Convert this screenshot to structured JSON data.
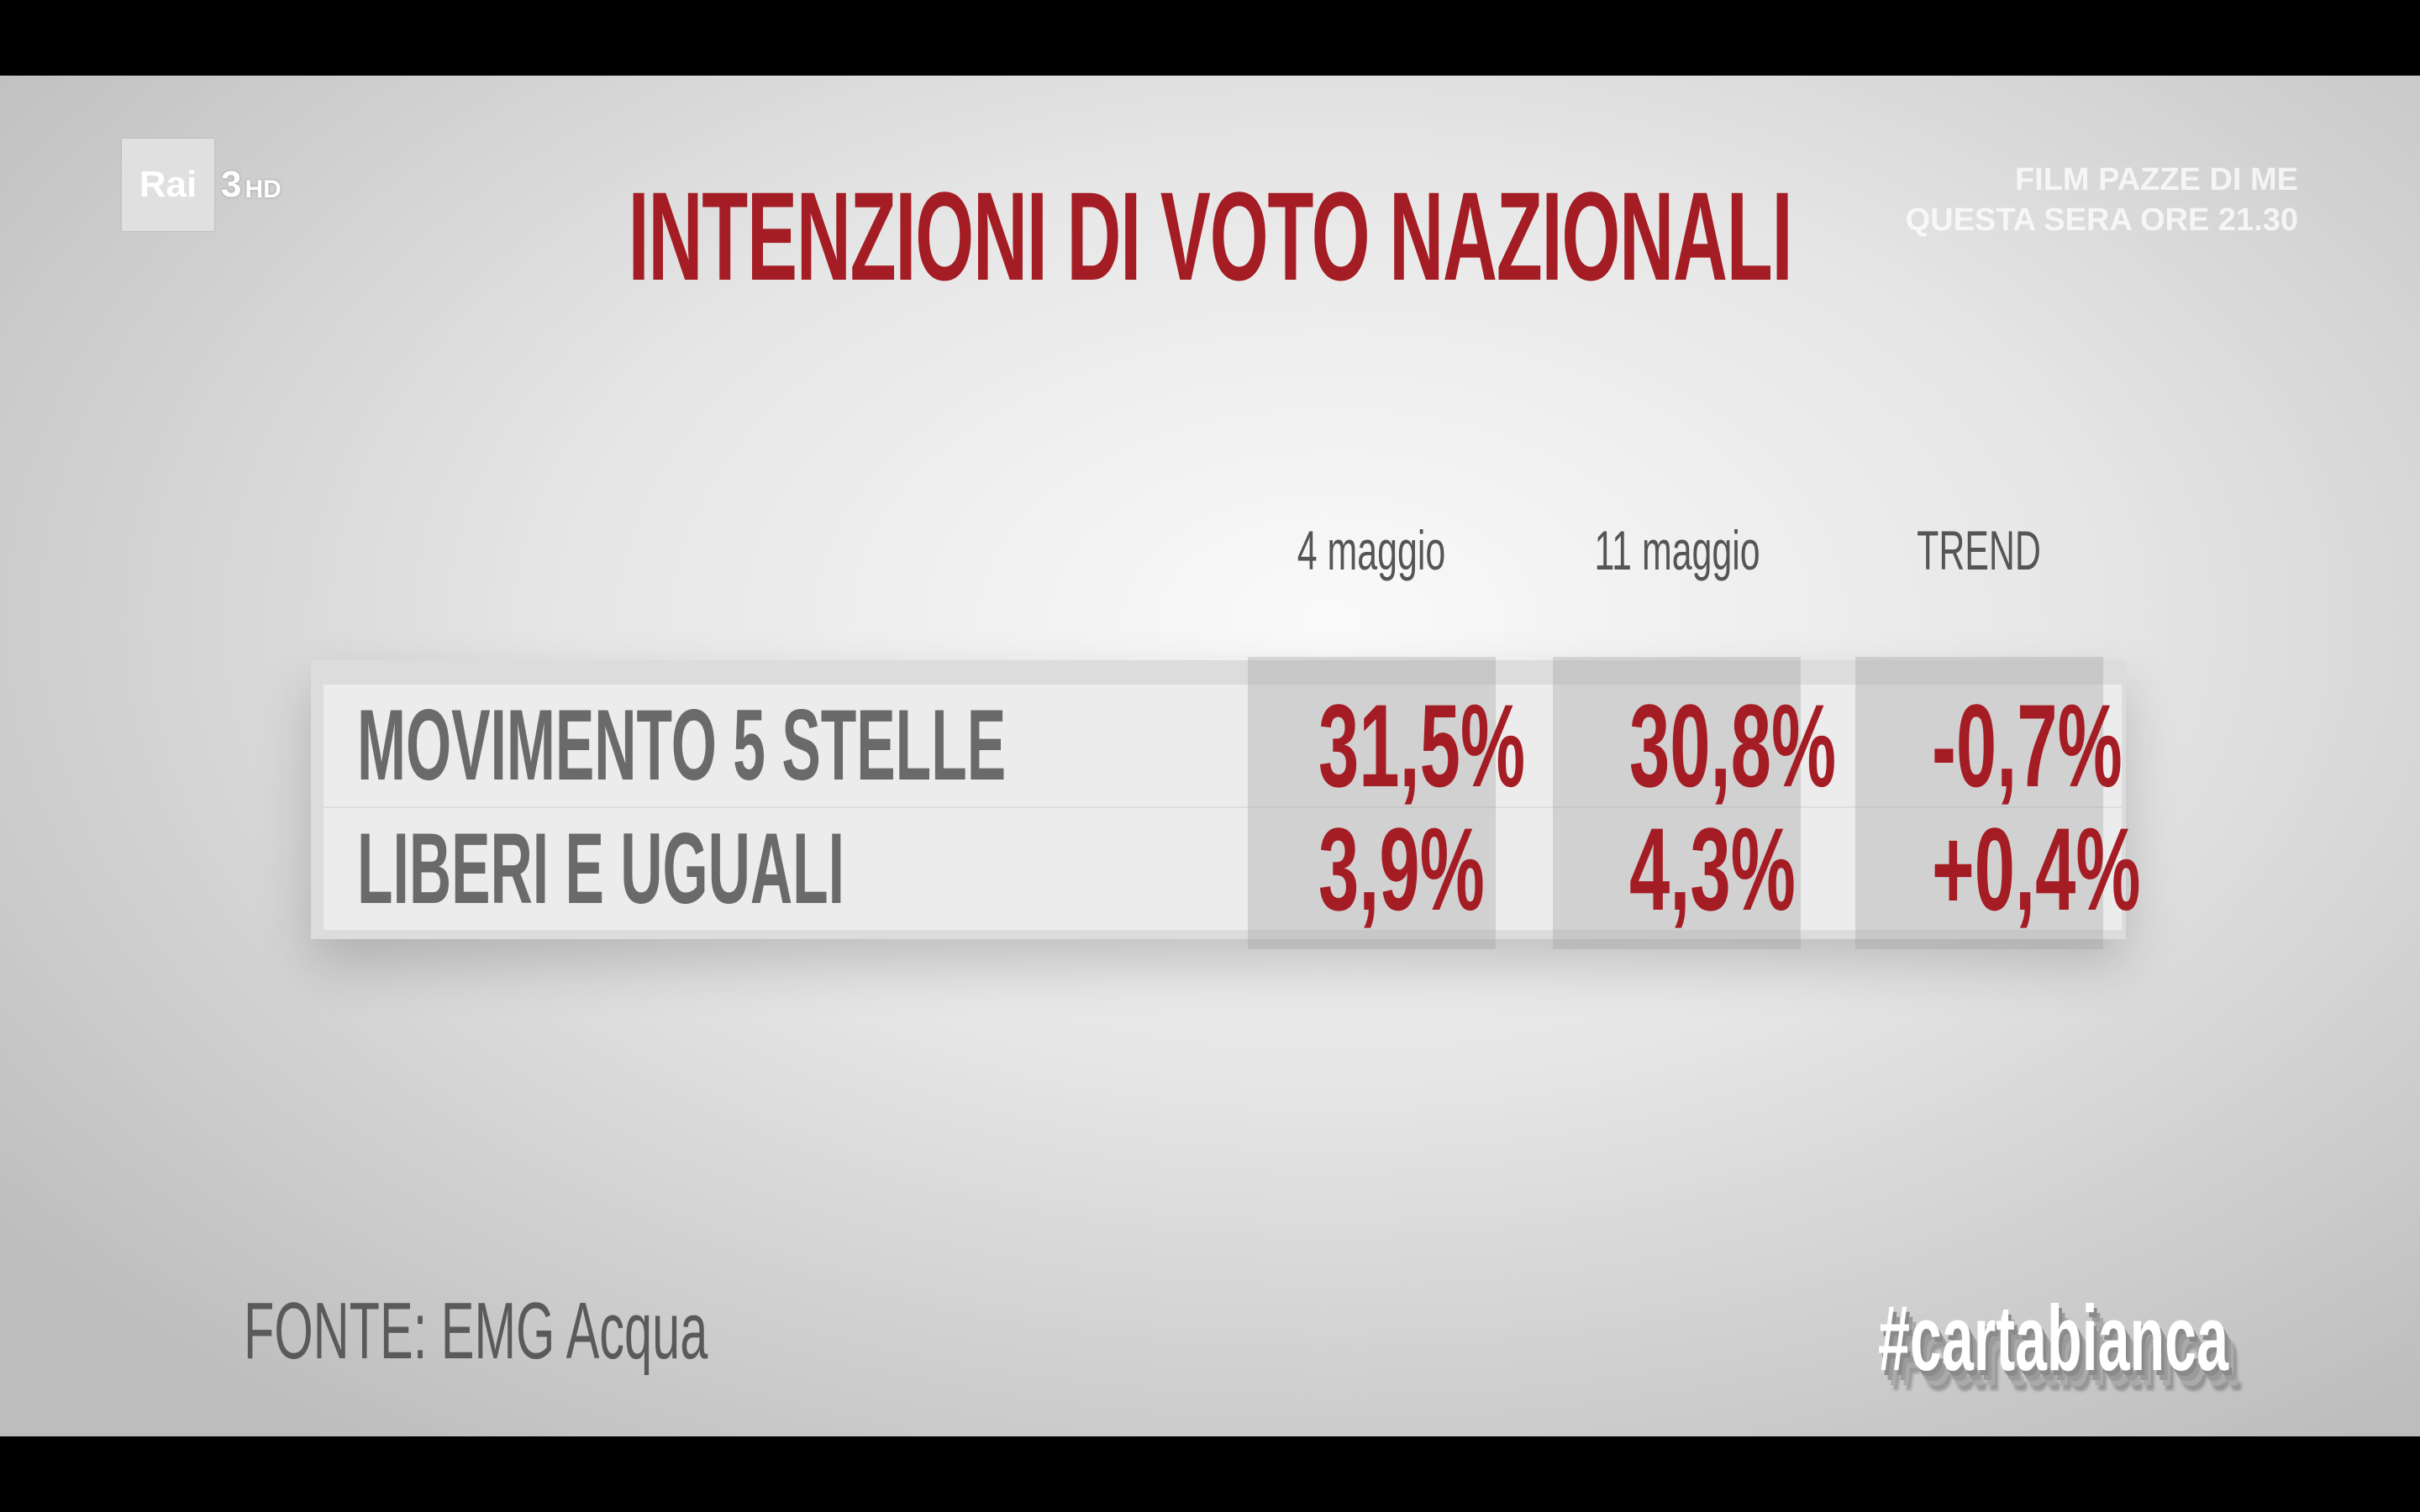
{
  "logo": {
    "brand": "Rai",
    "channel": "3",
    "hd": "HD"
  },
  "promo": {
    "line1": "FILM PAZZE DI ME",
    "line2": "QUESTA SERA ORE 21.30"
  },
  "chart_data": {
    "type": "table",
    "title": "INTENZIONI DI VOTO NAZIONALI",
    "columns": [
      "4 maggio",
      "11 maggio",
      "TREND"
    ],
    "rows": [
      {
        "label": "MOVIMENTO 5 STELLE",
        "values": [
          "31,5%",
          "30,8%",
          "-0,7%"
        ]
      },
      {
        "label": "LIBERI E UGUALI",
        "values": [
          "3,9%",
          "4,3%",
          "+0,4%"
        ]
      }
    ],
    "numeric": [
      {
        "party": "MOVIMENTO 5 STELLE",
        "4 maggio": 31.5,
        "11 maggio": 30.8,
        "trend": -0.7
      },
      {
        "party": "LIBERI E UGUALI",
        "4 maggio": 3.9,
        "11 maggio": 4.3,
        "trend": 0.4
      }
    ],
    "value_color": "#a51d24",
    "label_color": "#6a6a6a"
  },
  "source": "FONTE: EMG Acqua",
  "hashtag": "#cartabianca"
}
